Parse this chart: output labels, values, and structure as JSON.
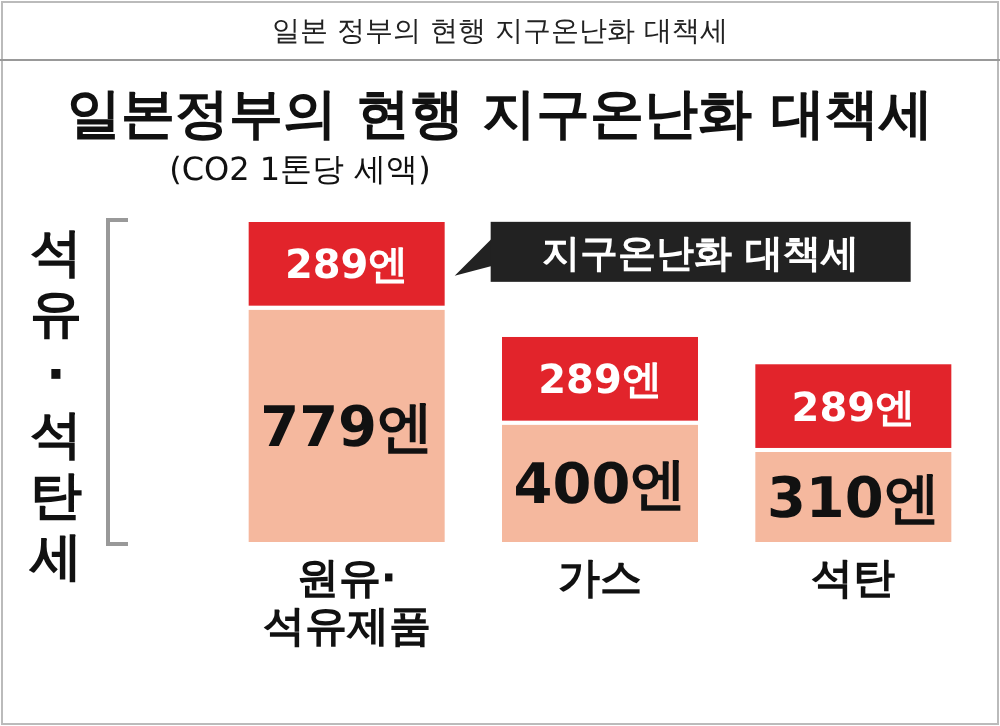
{
  "chart_data": {
    "type": "bar",
    "stacked": true,
    "title": "일본정부의 현행 지구온난화 대책세",
    "subtitle": "(CO2 1톤당 세액)",
    "ylabel": "석유 · 석탄세",
    "annotations": [
      "일본 정부의 현행 지구온난화 대책세"
    ],
    "categories": [
      "원유·\n석유제품",
      "가스",
      "석탄"
    ],
    "series": [
      {
        "color": "#f5b89e",
        "values": [
          779,
          400,
          310
        ],
        "value_labels": [
          "779엔",
          "400엔",
          "310엔"
        ]
      },
      {
        "name": "지구온난화 대책세",
        "color": "#e2242b",
        "values": [
          289,
          289,
          289
        ],
        "value_labels": [
          "289엔",
          "289엔",
          "289엔"
        ]
      }
    ]
  }
}
